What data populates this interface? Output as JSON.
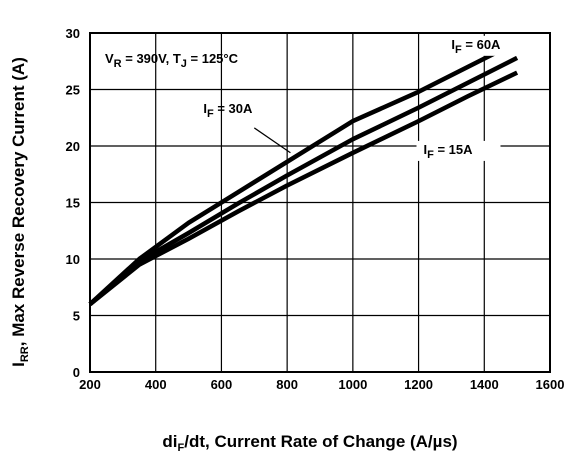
{
  "chart_data": {
    "type": "line",
    "title": "",
    "xlabel": {
      "main": "di",
      "sub": "F",
      "rest": "/dt, Current Rate of Change (A/µs)"
    },
    "ylabel": {
      "main": "I",
      "sub": "RR",
      "rest": ", Max Reverse Recovery Current (A)"
    },
    "xlim": [
      200,
      1600
    ],
    "ylim": [
      0,
      30
    ],
    "xticks": [
      200,
      400,
      600,
      800,
      1000,
      1200,
      1400,
      1600
    ],
    "yticks": [
      0,
      5,
      10,
      15,
      20,
      25,
      30
    ],
    "grid": true,
    "condition": {
      "v": "V",
      "v_sub": "R",
      "v_rest": " = 390V, T",
      "t_sub": "J",
      "t_rest": " = 125°C"
    },
    "series": [
      {
        "name": "IF = 60A",
        "label": {
          "main": "I",
          "sub": "F",
          "rest": " = 60A"
        },
        "x": [
          200,
          350,
          500,
          650,
          800,
          1000,
          1200,
          1350,
          1500
        ],
        "y": [
          6.0,
          10.0,
          13.2,
          15.9,
          18.6,
          22.2,
          24.8,
          27.0,
          29.2
        ]
      },
      {
        "name": "IF = 30A",
        "label": {
          "main": "I",
          "sub": "F",
          "rest": " = 30A"
        },
        "x": [
          200,
          350,
          500,
          650,
          800,
          1000,
          1200,
          1350,
          1500
        ],
        "y": [
          6.0,
          9.8,
          12.3,
          14.9,
          17.4,
          20.6,
          23.4,
          25.6,
          27.8
        ]
      },
      {
        "name": "IF = 15A",
        "label": {
          "main": "I",
          "sub": "F",
          "rest": " = 15A"
        },
        "x": [
          200,
          350,
          500,
          650,
          800,
          1000,
          1200,
          1350,
          1500
        ],
        "y": [
          6.0,
          9.5,
          11.8,
          14.2,
          16.5,
          19.4,
          22.2,
          24.4,
          26.5
        ]
      }
    ]
  }
}
